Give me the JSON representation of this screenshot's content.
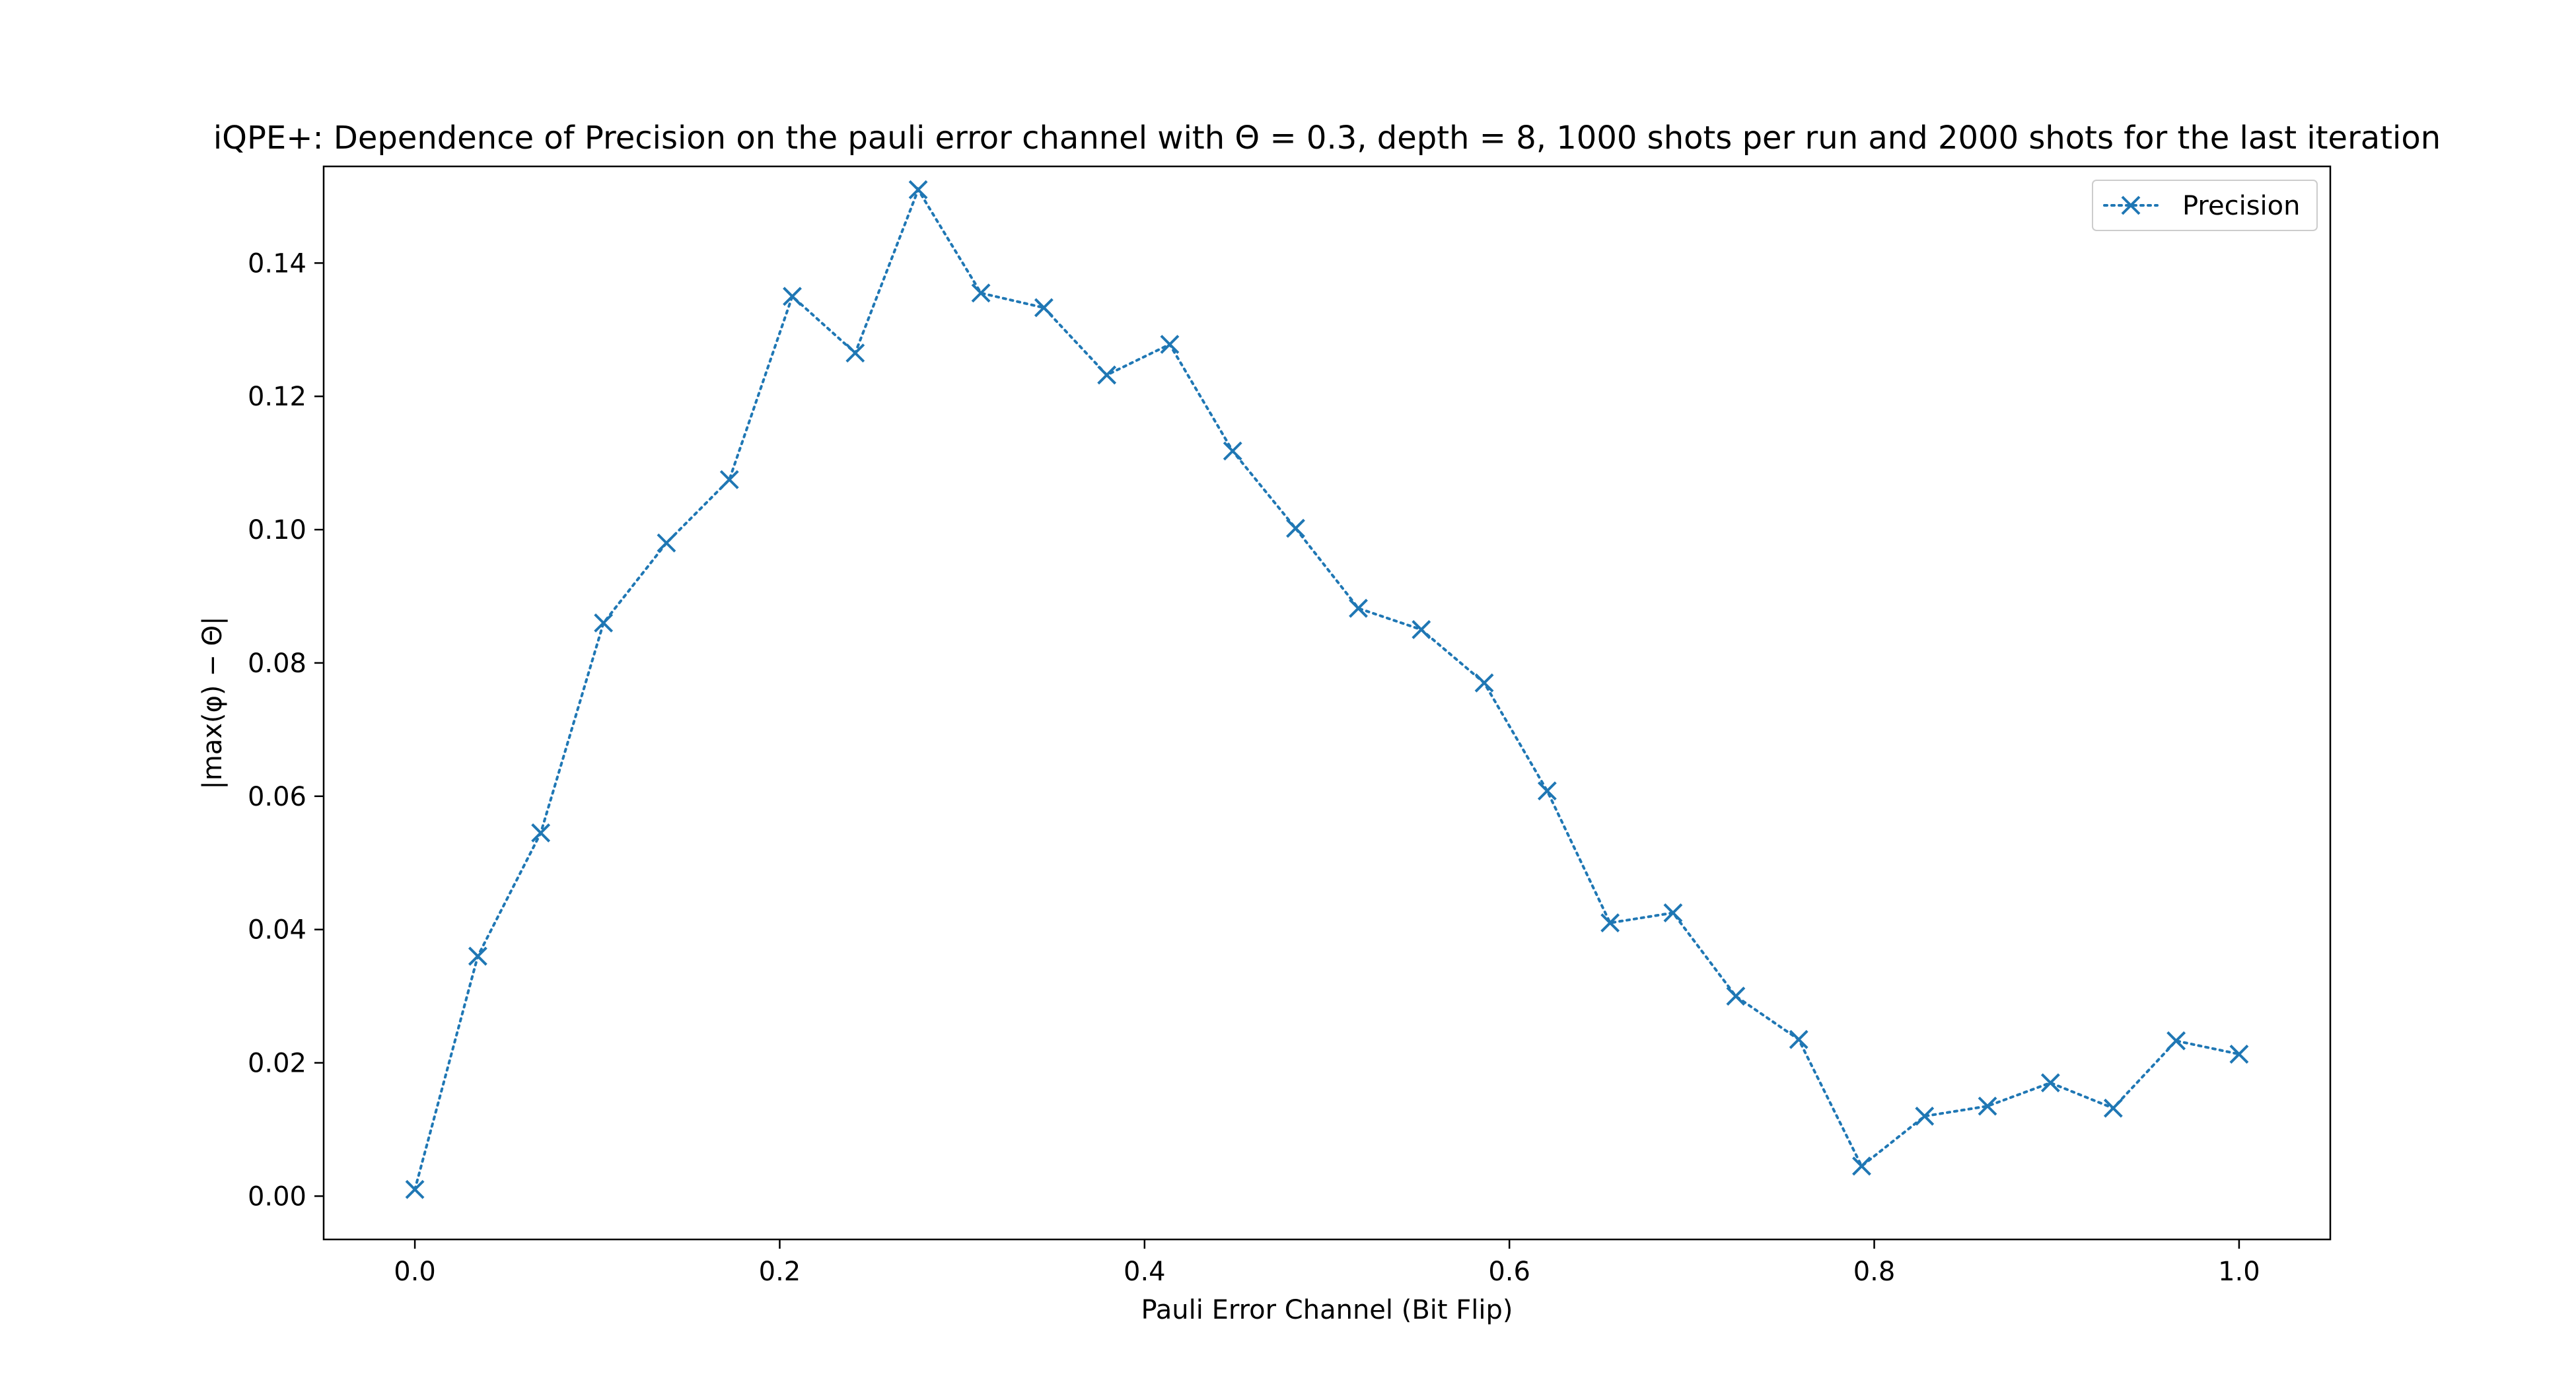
{
  "chart_data": {
    "type": "line",
    "title": "iQPE+: Dependence of Precision on the pauli error channel with Θ = 0.3, depth = 8, 1000 shots per run and 2000 shots for the last iteration",
    "xlabel": "Pauli Error Channel (Bit Flip)",
    "ylabel": "|max(φ) − Θ|",
    "xlim": [
      -0.05,
      1.05
    ],
    "ylim": [
      -0.0065,
      0.1545
    ],
    "xticks": [
      "0.0",
      "0.2",
      "0.4",
      "0.6",
      "0.8",
      "1.0"
    ],
    "yticks": [
      "0.00",
      "0.02",
      "0.04",
      "0.06",
      "0.08",
      "0.10",
      "0.12",
      "0.14"
    ],
    "grid": false,
    "legend_position": "top-right",
    "series": [
      {
        "name": "Precision",
        "color": "#1f77b4",
        "line_style": "dotted",
        "marker": "x",
        "x": [
          0.0,
          0.0345,
          0.069,
          0.1034,
          0.1379,
          0.1724,
          0.2069,
          0.2414,
          0.2759,
          0.3103,
          0.3448,
          0.3793,
          0.4138,
          0.4483,
          0.4828,
          0.5172,
          0.5517,
          0.5862,
          0.6207,
          0.6552,
          0.6897,
          0.7241,
          0.7586,
          0.7931,
          0.8276,
          0.8621,
          0.8966,
          0.931,
          0.9655,
          1.0
        ],
        "y": [
          0.001,
          0.036,
          0.0545,
          0.086,
          0.098,
          0.1075,
          0.135,
          0.1265,
          0.151,
          0.1355,
          0.1333,
          0.1232,
          0.1278,
          0.1118,
          0.1002,
          0.0882,
          0.085,
          0.077,
          0.0608,
          0.041,
          0.0425,
          0.03,
          0.0235,
          0.0045,
          0.012,
          0.0135,
          0.017,
          0.0132,
          0.0233,
          0.0213
        ]
      }
    ]
  }
}
